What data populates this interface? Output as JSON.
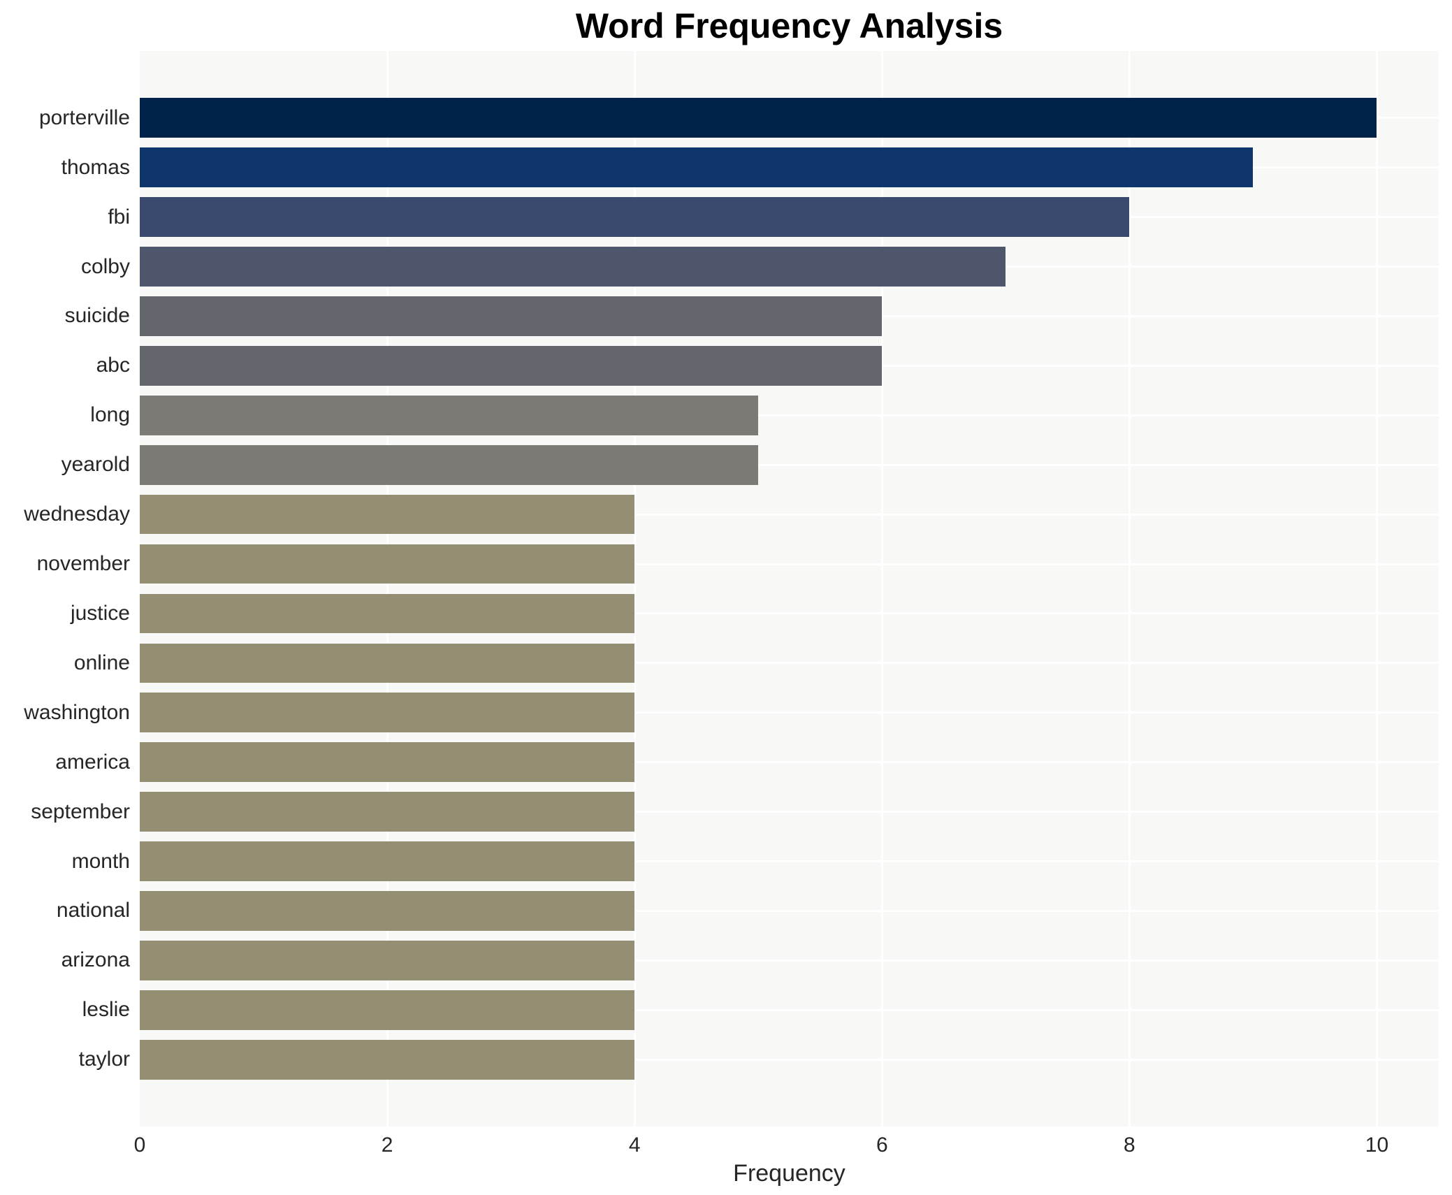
{
  "chart_data": {
    "type": "bar",
    "orientation": "horizontal",
    "title": "Word Frequency Analysis",
    "xlabel": "Frequency",
    "ylabel": "",
    "categories": [
      "porterville",
      "thomas",
      "fbi",
      "colby",
      "suicide",
      "abc",
      "long",
      "yearold",
      "wednesday",
      "november",
      "justice",
      "online",
      "washington",
      "america",
      "september",
      "month",
      "national",
      "arizona",
      "leslie",
      "taylor"
    ],
    "values": [
      10,
      9,
      8,
      7,
      6,
      6,
      5,
      5,
      4,
      4,
      4,
      4,
      4,
      4,
      4,
      4,
      4,
      4,
      4,
      4
    ],
    "bar_colors": [
      "#022349",
      "#0e356c",
      "#3a496e",
      "#4e566b",
      "#64666d",
      "#64666d",
      "#7b7a74",
      "#7b7a74",
      "#948e72",
      "#948e72",
      "#948e72",
      "#948e72",
      "#948e72",
      "#948e72",
      "#948e72",
      "#948e72",
      "#948e72",
      "#948e72",
      "#948e72",
      "#948e72"
    ],
    "xlim": [
      0,
      10.5
    ],
    "xticks": [
      0,
      2,
      4,
      6,
      8,
      10
    ],
    "xtick_labels": [
      "0",
      "2",
      "4",
      "6",
      "8",
      "10"
    ],
    "grid": true,
    "legend": false,
    "colors": {
      "figure_bg": "#ffffff",
      "plot_bg": "#f8f8f7",
      "grid": "#ffffff",
      "tick_text": "#262626",
      "title_text": "#000000"
    }
  }
}
